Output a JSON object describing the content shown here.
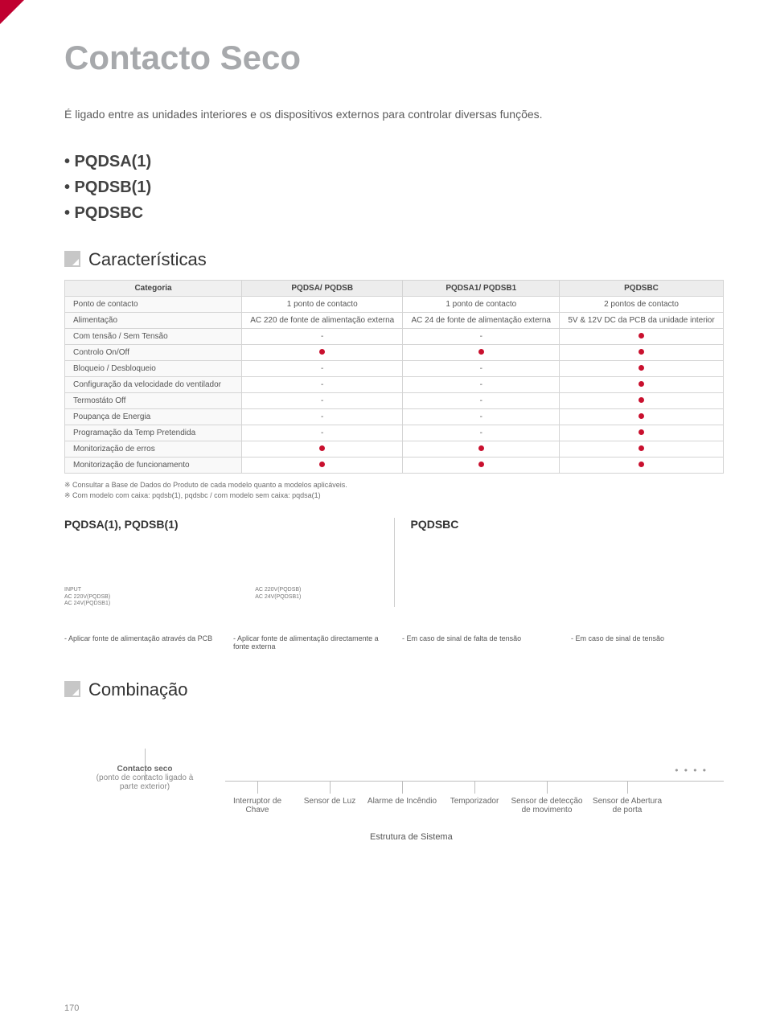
{
  "page_title": "Contacto Seco",
  "intro": "É ligado entre as unidades interiores e os dispositivos externos para controlar diversas funções.",
  "bullets": [
    "• PQDSA(1)",
    "• PQDSB(1)",
    "• PQDSBC"
  ],
  "section_features": "Características",
  "section_combination": "Combinação",
  "table": {
    "head": [
      "Categoria",
      "PQDSA/ PQDSB",
      "PQDSA1/ PQDSB1",
      "PQDSBC"
    ],
    "rows": [
      {
        "label": "Ponto de contacto",
        "cells": [
          "1 ponto de contacto",
          "1 ponto de contacto",
          "2 pontos de contacto"
        ]
      },
      {
        "label": "Alimentação",
        "cells": [
          "AC 220 de fonte de alimentação externa",
          "AC 24 de fonte de alimentação externa",
          "5V & 12V DC da PCB da unidade interior"
        ]
      },
      {
        "label": "Com tensão / Sem Tensão",
        "cells": [
          "-",
          "-",
          "dot"
        ]
      },
      {
        "label": "Controlo On/Off",
        "cells": [
          "dot",
          "dot",
          "dot"
        ]
      },
      {
        "label": "Bloqueio / Desbloqueio",
        "cells": [
          "-",
          "-",
          "dot"
        ]
      },
      {
        "label": "Configuração da velocidade do ventilador",
        "cells": [
          "-",
          "-",
          "dot"
        ]
      },
      {
        "label": "Termostáto Off",
        "cells": [
          "-",
          "-",
          "dot"
        ]
      },
      {
        "label": "Poupança de Energia",
        "cells": [
          "-",
          "-",
          "dot"
        ]
      },
      {
        "label": "Programação da Temp Pretendida",
        "cells": [
          "-",
          "-",
          "dot"
        ]
      },
      {
        "label": "Monitorização de erros",
        "cells": [
          "dot",
          "dot",
          "dot"
        ]
      },
      {
        "label": "Monitorização de funcionamento",
        "cells": [
          "dot",
          "dot",
          "dot"
        ]
      }
    ]
  },
  "notes": [
    "※ Consultar a Base de Dados do Produto de cada modelo quanto a modelos aplicáveis.",
    "※ Com modelo com caixa: pqdsb(1), pqdsbc / com modelo sem caixa: pqdsa(1)"
  ],
  "left_title": "PQDSA(1), PQDSB(1)",
  "right_title": "PQDSBC",
  "tiny_left_a": "INPUT\nAC 220V(PQDSB)\nAC 24V(PQDSB1)",
  "tiny_left_b": "AC 220V(PQDSB)\nAC 24V(PQDSB1)",
  "captions": [
    "- Aplicar fonte de alimentação através da PCB",
    "- Aplicar fonte de alimentação directamente a fonte externa",
    "- Em caso de sinal de falta de tensão",
    "- Em caso de sinal de tensão"
  ],
  "combo": {
    "contact_title": "Contacto seco",
    "contact_sub": "(ponto de contacto ligado à parte exterior)",
    "items": [
      "Interruptor de Chave",
      "Sensor de Luz",
      "Alarme de Incêndio",
      "Temporizador",
      "Sensor de detecção de movimento",
      "Sensor de Abertura de porta"
    ],
    "ellipsis": "• • • •",
    "system": "Estrutura de Sistema"
  },
  "page_number": "170",
  "colors": {
    "accent": "#c9102e",
    "title_grey": "#a7a9ac",
    "border": "#d4d4d4"
  }
}
